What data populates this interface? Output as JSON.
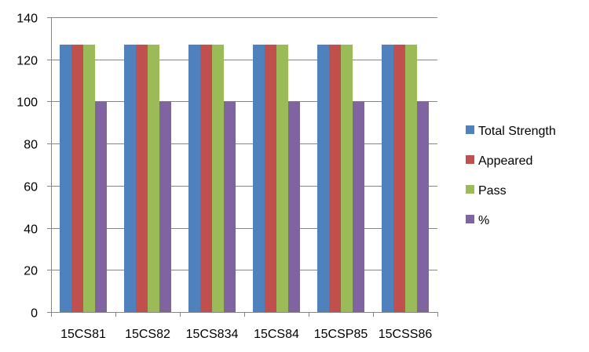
{
  "chart_data": {
    "type": "bar",
    "categories": [
      "15CS81",
      "15CS82",
      "15CS834",
      "15CS84",
      "15CSP85",
      "15CSS86"
    ],
    "series": [
      {
        "name": "Total Strength",
        "color": "#4F81BD",
        "values": [
          127,
          127,
          127,
          127,
          127,
          127
        ]
      },
      {
        "name": "Appeared",
        "color": "#C0504D",
        "values": [
          127,
          127,
          127,
          127,
          127,
          127
        ]
      },
      {
        "name": "Pass",
        "color": "#9BBB59",
        "values": [
          127,
          127,
          127,
          127,
          127,
          127
        ]
      },
      {
        "name": "%",
        "color": "#8064A2",
        "values": [
          100,
          100,
          100,
          100,
          100,
          100
        ]
      }
    ],
    "ylim": [
      0,
      140
    ],
    "yticks": [
      "0",
      "20",
      "40",
      "60",
      "80",
      "100",
      "120",
      "140"
    ],
    "grid": true,
    "legend": "right"
  }
}
